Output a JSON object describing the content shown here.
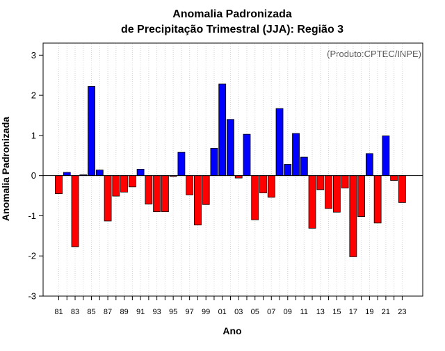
{
  "chart_data": {
    "type": "bar",
    "title_line1": "Anomalia Padronizada",
    "title_line2": "de Precipitação Trimestral (JJA): Região 3",
    "xlabel": "Ano",
    "ylabel": "Anomalia Padronizada",
    "credit": "(Produto:CPTEC/INPE)",
    "ylim": [
      -3,
      3.3
    ],
    "yticks": [
      "-3",
      "-2",
      "-1",
      "0",
      "1",
      "2",
      "3"
    ],
    "years": [
      "81",
      "82",
      "83",
      "84",
      "85",
      "86",
      "87",
      "88",
      "89",
      "90",
      "91",
      "92",
      "93",
      "94",
      "95",
      "96",
      "97",
      "98",
      "99",
      "00",
      "01",
      "02",
      "03",
      "04",
      "05",
      "06",
      "07",
      "08",
      "09",
      "10",
      "11",
      "12",
      "13",
      "14",
      "15",
      "16",
      "17",
      "18",
      "19",
      "20",
      "21",
      "22",
      "23"
    ],
    "xtick_labels": [
      "81",
      "83",
      "85",
      "87",
      "89",
      "91",
      "93",
      "95",
      "97",
      "99",
      "01",
      "03",
      "05",
      "07",
      "09",
      "11",
      "13",
      "15",
      "17",
      "19",
      "21",
      "23"
    ],
    "values": [
      -0.45,
      0.08,
      -1.77,
      0.02,
      2.22,
      0.14,
      -1.13,
      -0.51,
      -0.41,
      -0.28,
      0.16,
      -0.71,
      -0.9,
      -0.9,
      -0.02,
      0.58,
      -0.48,
      -1.23,
      -0.72,
      0.68,
      2.28,
      1.4,
      -0.06,
      1.03,
      -1.1,
      -0.43,
      -0.54,
      1.67,
      0.28,
      1.05,
      0.46,
      -1.31,
      -0.35,
      -0.82,
      -0.91,
      -0.31,
      -2.02,
      -1.02,
      0.55,
      -1.18,
      0.99,
      -0.12,
      -0.67
    ],
    "colors": {
      "positive": "#0000ff",
      "negative": "#ff0000",
      "grid": "#d3d3d3",
      "axis": "#000000"
    }
  }
}
